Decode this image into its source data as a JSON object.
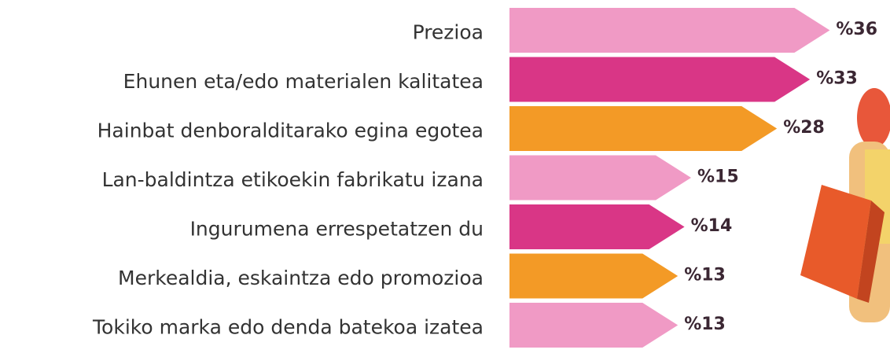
{
  "chart_data": {
    "type": "arrow-bar",
    "categories": [
      "Prezioa",
      "Ehunen eta/edo materialen kalitatea",
      "Hainbat denboralditarako egina egotea",
      "Lan-baldintza etikoekin fabrikatu izana",
      "Ingurumena errespetatzen du",
      "Merkealdia, eskaintza edo promozioa",
      "Tokiko marka edo denda batekoa izatea"
    ],
    "values": [
      36,
      33,
      28,
      15,
      14,
      13,
      13
    ],
    "value_labels": [
      "%36",
      "%33",
      "%28",
      "%15",
      "%14",
      "%13",
      "%13"
    ],
    "colors": [
      "#f09ac5",
      "#d93686",
      "#f39a26",
      "#f09ac5",
      "#d93686",
      "#f39a26",
      "#f09ac5"
    ]
  }
}
